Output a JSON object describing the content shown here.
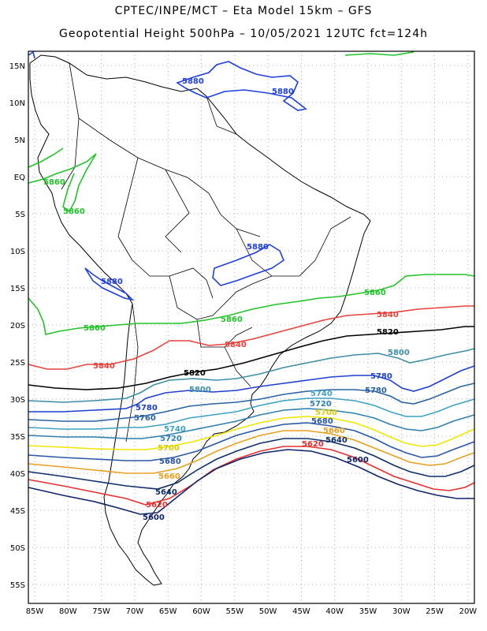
{
  "header": {
    "line1": "CPTEC/INPE/MCT – Eta Model 15km – GFS",
    "line2": "Geopotential Height 500hPa – 10/05/2021 12UTC fct=124h"
  },
  "axes": {
    "lat_ticks": [
      "15N",
      "10N",
      "5N",
      "EQ",
      "5S",
      "10S",
      "15S",
      "20S",
      "25S",
      "30S",
      "35S",
      "40S",
      "45S",
      "50S",
      "55S"
    ],
    "lon_ticks": [
      "85W",
      "80W",
      "75W",
      "70W",
      "65W",
      "60W",
      "55W",
      "50W",
      "45W",
      "40W",
      "35W",
      "30W",
      "25W",
      "20W"
    ]
  },
  "contours": [
    {
      "value": "5880",
      "color": "#1f3fe0"
    },
    {
      "value": "5860",
      "color": "#22c32a"
    },
    {
      "value": "5840",
      "color": "#e8423a"
    },
    {
      "value": "5820",
      "color": "#000000"
    },
    {
      "value": "5800",
      "color": "#3e8ea8"
    },
    {
      "value": "5780",
      "color": "#1e3fd0"
    },
    {
      "value": "5760",
      "color": "#2a63a3"
    },
    {
      "value": "5740",
      "color": "#3ea2c2"
    },
    {
      "value": "5720",
      "color": "#2f7fb0"
    },
    {
      "value": "5700",
      "color": "#f2e600"
    },
    {
      "value": "5680",
      "color": "#2a56a6"
    },
    {
      "value": "5660",
      "color": "#e8a020"
    },
    {
      "value": "5640",
      "color": "#0e2f6a"
    },
    {
      "value": "5620",
      "color": "#e53030"
    },
    {
      "value": "5600",
      "color": "#10256a"
    }
  ],
  "contour_labels": {
    "l5880_a": "5880",
    "l5880_b": "5880",
    "l5880_c": "5880",
    "l5880_d": "5880",
    "l5860_a": "5860",
    "l5860_b": "5860",
    "l5860_c": "5860",
    "l5860_d": "5860",
    "l5860_e": "5860",
    "l5840_a": "5840",
    "l5840_b": "5840",
    "l5840_c": "5840",
    "l5820_a": "5820",
    "l5820_b": "5820",
    "l5800_a": "5800",
    "l5800_b": "5800",
    "l5780_a": "5780",
    "l5780_b": "5780",
    "l5780_c": "5780",
    "l5760_a": "5760",
    "l5740_a": "5740",
    "l5740_b": "5740",
    "l5720_a": "5720",
    "l5720_b": "5720",
    "l5700_a": "5700",
    "l5700_b": "5700",
    "l5680_a": "5680",
    "l5680_b": "5680",
    "l5660_a": "5660",
    "l5660_b": "5660",
    "l5640_a": "5640",
    "l5640_b": "5640",
    "l5620_a": "5620",
    "l5620_b": "5620",
    "l5600_a": "5600",
    "l5600_b": "5600"
  }
}
